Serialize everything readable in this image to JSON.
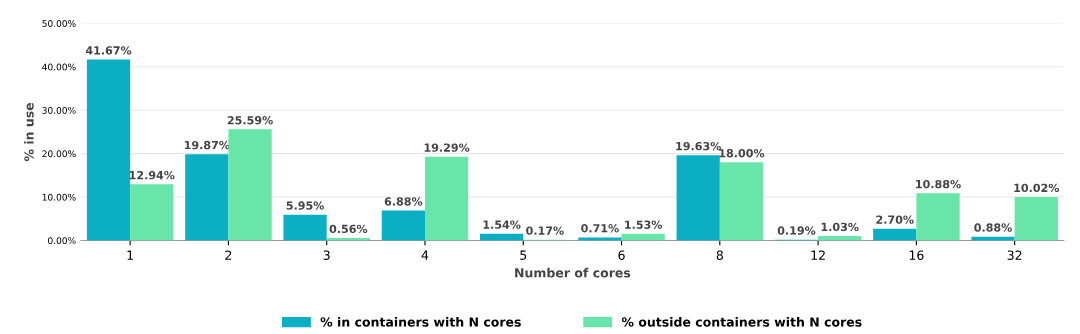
{
  "chart_data": {
    "type": "bar",
    "xlabel": "Number of cores",
    "ylabel": "% in use",
    "categories": [
      "1",
      "2",
      "3",
      "4",
      "5",
      "6",
      "8",
      "12",
      "16",
      "32"
    ],
    "series": [
      {
        "name": "% in containers with N cores",
        "color": "#0aafc4",
        "values": [
          41.67,
          19.87,
          5.95,
          6.88,
          1.54,
          0.71,
          19.63,
          0.19,
          2.7,
          0.88
        ],
        "value_labels": [
          "41.67%",
          "19.87%",
          "5.95%",
          "6.88%",
          "1.54%",
          "0.71%",
          "19.63%",
          "0.19%",
          "2.70%",
          "0.88%"
        ]
      },
      {
        "name": "% outside containers with N cores",
        "color": "#68e5a8",
        "values": [
          12.94,
          25.59,
          0.56,
          19.29,
          0.17,
          1.53,
          18.0,
          1.03,
          10.88,
          10.02
        ],
        "value_labels": [
          "12.94%",
          "25.59%",
          "0.56%",
          "19.29%",
          "0.17%",
          "1.53%",
          "18.00%",
          "1.03%",
          "10.88%",
          "10.02%"
        ]
      }
    ],
    "ylim": [
      0,
      50
    ],
    "yticks": [
      {
        "value": 0,
        "label": "0.00%"
      },
      {
        "value": 10,
        "label": "10.00%"
      },
      {
        "value": 20,
        "label": "20.00%"
      },
      {
        "value": 30,
        "label": "30.00%"
      },
      {
        "value": 40,
        "label": "40.00%"
      },
      {
        "value": 50,
        "label": "50.00%"
      }
    ],
    "grid": "y",
    "legend": "bottom"
  }
}
